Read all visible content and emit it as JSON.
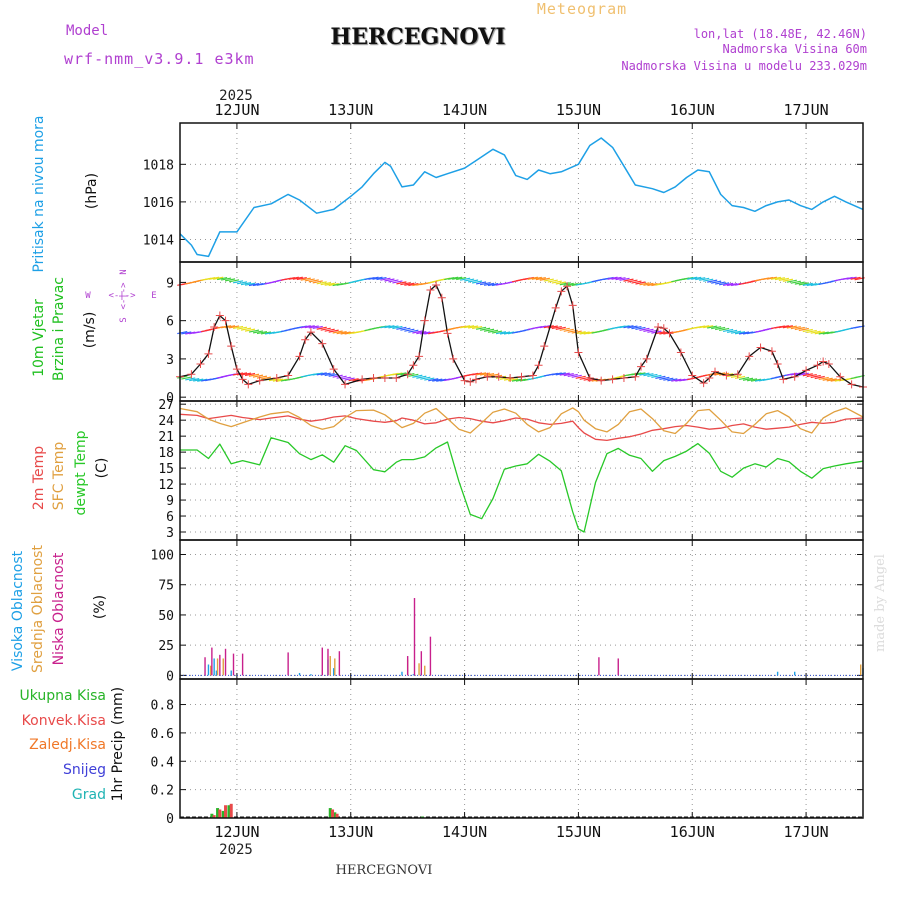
{
  "header": {
    "title": "HERCEGNOVI",
    "product": "Meteogram",
    "model_label": "Model",
    "model_name": "wrf-nmm_v3.9.1 e3km",
    "location": "lon,lat (18.48E, 42.46N)",
    "altitude": "Nadmorska Visina 60m",
    "model_altitude": "Nadmorska Visina u modelu 233.029m",
    "footer_title": "HERCEGNOVI",
    "watermark": "made by Angel"
  },
  "colors": {
    "pressure": "#1ea0e6",
    "wind_label": "#20c020",
    "t2m": "#e84a4a",
    "sfc": "#e0a040",
    "dew": "#28c828",
    "cloud_high": "#1ea0e6",
    "cloud_mid": "#e0a040",
    "cloud_low": "#c8208c",
    "total": "#28b428",
    "conv": "#e84a4a",
    "frz": "#f07828",
    "snow": "#4040d8",
    "hail": "#20b4b4",
    "model": "#b040d0",
    "product": "#f0c070"
  },
  "chart_data": {
    "type": "meteogram",
    "year": "2025",
    "x_ticks": [
      "12JUN",
      "13JUN",
      "14JUN",
      "15JUN",
      "16JUN",
      "17JUN"
    ],
    "x_range_days": [
      11.5,
      17.5
    ],
    "panels": [
      {
        "id": "pressure",
        "type": "line",
        "title": "Pritisak na nivou mora",
        "unit": "(hPa)",
        "ylim": [
          1012.8,
          1020.2
        ],
        "yticks": [
          1014,
          1016,
          1018
        ],
        "x": [
          11.5,
          11.6,
          11.65,
          11.75,
          11.85,
          12.0,
          12.15,
          12.3,
          12.45,
          12.55,
          12.7,
          12.85,
          13.0,
          13.1,
          13.2,
          13.3,
          13.35,
          13.45,
          13.55,
          13.65,
          13.75,
          13.85,
          14.0,
          14.1,
          14.25,
          14.35,
          14.45,
          14.55,
          14.65,
          14.75,
          14.85,
          15.0,
          15.1,
          15.2,
          15.3,
          15.4,
          15.5,
          15.65,
          15.75,
          15.85,
          15.95,
          16.05,
          16.15,
          16.25,
          16.35,
          16.45,
          16.55,
          16.65,
          16.75,
          16.85,
          16.95,
          17.05,
          17.15,
          17.25,
          17.35,
          17.5
        ],
        "values": [
          1014.3,
          1013.7,
          1013.2,
          1013.1,
          1014.4,
          1014.4,
          1015.7,
          1015.9,
          1016.4,
          1016.1,
          1015.4,
          1015.6,
          1016.3,
          1016.8,
          1017.5,
          1018.1,
          1017.9,
          1016.8,
          1016.9,
          1017.6,
          1017.3,
          1017.5,
          1017.8,
          1018.2,
          1018.8,
          1018.5,
          1017.4,
          1017.2,
          1017.7,
          1017.5,
          1017.6,
          1018.0,
          1019.0,
          1019.4,
          1018.9,
          1017.9,
          1016.9,
          1016.7,
          1016.5,
          1016.8,
          1017.3,
          1017.7,
          1017.6,
          1016.4,
          1015.8,
          1015.7,
          1015.5,
          1015.8,
          1016.0,
          1016.1,
          1015.8,
          1015.6,
          1016.0,
          1016.3,
          1016.0,
          1015.6
        ]
      },
      {
        "id": "wind",
        "type": "line",
        "title": "10m Vjetar Brzina i Pravac",
        "title_line1": "10m Vjetar",
        "title_line2": "Brzina i Pravac",
        "unit": "(m/s)",
        "ylim": [
          -0.3,
          10.6
        ],
        "yticks": [
          0,
          3,
          6,
          9
        ],
        "compass": {
          "n": "N",
          "e": "E",
          "s": "S",
          "w": "W",
          "arrow_h": "<-|->",
          "arrow_v": "<-|->"
        },
        "x": [
          11.5,
          11.6,
          11.68,
          11.75,
          11.8,
          11.85,
          11.9,
          11.95,
          12.0,
          12.05,
          12.1,
          12.2,
          12.35,
          12.45,
          12.55,
          12.6,
          12.65,
          12.75,
          12.85,
          12.95,
          13.1,
          13.2,
          13.3,
          13.4,
          13.5,
          13.55,
          13.6,
          13.65,
          13.7,
          13.75,
          13.8,
          13.85,
          13.9,
          14.0,
          14.05,
          14.1,
          14.2,
          14.3,
          14.4,
          14.5,
          14.6,
          14.65,
          14.7,
          14.8,
          14.85,
          14.9,
          14.95,
          15.0,
          15.1,
          15.2,
          15.3,
          15.4,
          15.5,
          15.55,
          15.6,
          15.7,
          15.75,
          15.8,
          15.9,
          16.0,
          16.1,
          16.15,
          16.2,
          16.3,
          16.4,
          16.5,
          16.6,
          16.7,
          16.75,
          16.8,
          16.9,
          17.0,
          17.1,
          17.15,
          17.2,
          17.3,
          17.4,
          17.5
        ],
        "values": [
          1.6,
          1.8,
          2.6,
          3.4,
          5.5,
          6.4,
          6.0,
          4.0,
          2.2,
          1.4,
          1.0,
          1.3,
          1.5,
          1.7,
          3.2,
          4.5,
          5.1,
          4.2,
          2.2,
          1.0,
          1.4,
          1.5,
          1.5,
          1.5,
          1.8,
          2.5,
          3.2,
          6.0,
          8.4,
          8.8,
          7.8,
          5.0,
          3.0,
          1.3,
          1.2,
          1.4,
          1.6,
          1.6,
          1.5,
          1.6,
          1.7,
          2.5,
          4.0,
          7.0,
          8.3,
          8.7,
          7.2,
          3.5,
          1.5,
          1.3,
          1.4,
          1.5,
          1.6,
          2.4,
          3.0,
          5.5,
          5.4,
          5.0,
          3.5,
          1.7,
          1.1,
          1.5,
          2.0,
          1.7,
          1.8,
          3.2,
          3.9,
          3.6,
          2.6,
          1.4,
          1.6,
          2.1,
          2.5,
          2.8,
          2.6,
          1.6,
          1.0,
          0.8
        ]
      },
      {
        "id": "temperature",
        "type": "line",
        "titles": [
          "2m Temp",
          "SFC Temp",
          "dewpt Temp"
        ],
        "unit": "(C)",
        "ylim": [
          1.5,
          27.6
        ],
        "yticks": [
          3,
          6,
          9,
          12,
          15,
          18,
          21,
          24,
          27
        ],
        "x": [
          11.5,
          11.65,
          11.75,
          11.85,
          11.95,
          12.05,
          12.2,
          12.3,
          12.45,
          12.55,
          12.65,
          12.75,
          12.85,
          12.95,
          13.05,
          13.2,
          13.3,
          13.4,
          13.45,
          13.55,
          13.65,
          13.75,
          13.85,
          13.95,
          14.05,
          14.15,
          14.25,
          14.35,
          14.45,
          14.55,
          14.65,
          14.75,
          14.85,
          14.95,
          15.0,
          15.05,
          15.15,
          15.25,
          15.35,
          15.45,
          15.55,
          15.65,
          15.75,
          15.85,
          15.95,
          16.05,
          16.15,
          16.25,
          16.35,
          16.45,
          16.55,
          16.65,
          16.75,
          16.85,
          16.95,
          17.05,
          17.15,
          17.25,
          17.35,
          17.5
        ],
        "series": [
          {
            "name": "2m Temp",
            "values": [
              25.1,
              24.9,
              24.3,
              24.6,
              24.9,
              24.5,
              24.1,
              24.4,
              24.8,
              24.2,
              23.8,
              24.1,
              24.6,
              24.8,
              24.3,
              23.8,
              23.6,
              23.9,
              24.4,
              24.0,
              23.3,
              23.5,
              24.2,
              24.5,
              24.3,
              23.8,
              23.5,
              23.9,
              24.4,
              24.2,
              23.5,
              23.2,
              23.4,
              23.8,
              22.6,
              21.6,
              20.4,
              20.2,
              20.6,
              20.9,
              21.4,
              22.1,
              22.4,
              22.8,
              23.0,
              22.7,
              22.3,
              22.5,
              23.0,
              23.3,
              22.7,
              22.3,
              22.5,
              22.7,
              23.2,
              23.6,
              23.4,
              23.6,
              24.2,
              24.4
            ]
          },
          {
            "name": "SFC Temp",
            "values": [
              26.2,
              25.6,
              24.2,
              23.4,
              22.8,
              23.5,
              24.6,
              25.2,
              25.6,
              24.5,
              23.0,
              22.3,
              22.8,
              24.5,
              25.8,
              25.9,
              25.0,
              23.4,
              22.6,
              23.4,
              25.3,
              26.2,
              24.3,
              22.3,
              21.6,
              23.5,
              25.5,
              26.1,
              25.3,
              23.2,
              21.8,
              22.6,
              25.2,
              26.3,
              25.6,
              24.0,
              22.4,
              21.8,
              23.2,
              25.6,
              26.1,
              24.3,
              22.0,
              21.5,
              23.4,
              25.8,
              26.0,
              24.0,
              21.8,
              21.5,
              23.2,
              25.2,
              25.8,
              24.6,
              22.4,
              21.6,
              24.4,
              25.6,
              26.3,
              24.6
            ]
          },
          {
            "name": "dewpt Temp",
            "values": [
              18.4,
              18.4,
              16.8,
              19.5,
              15.8,
              16.4,
              15.6,
              20.7,
              19.8,
              17.7,
              16.6,
              17.5,
              16.1,
              19.2,
              18.3,
              14.7,
              14.3,
              16.1,
              16.6,
              16.6,
              17.1,
              18.8,
              19.9,
              12.5,
              6.3,
              5.5,
              9.3,
              14.8,
              15.4,
              15.8,
              17.6,
              16.3,
              14.5,
              6.8,
              3.6,
              3.0,
              12.3,
              17.7,
              18.7,
              17.4,
              16.8,
              14.4,
              16.4,
              17.2,
              18.2,
              19.6,
              17.8,
              14.4,
              13.3,
              15.0,
              15.8,
              15.2,
              16.8,
              16.2,
              14.4,
              13.1,
              14.9,
              15.4,
              15.8,
              16.3
            ]
          }
        ]
      },
      {
        "id": "cloud",
        "type": "bar",
        "titles": [
          "Visoka Oblacnost",
          "Srednja Oblacnost",
          "Niska Oblacnost"
        ],
        "unit": "(%)",
        "ylim": [
          -3,
          112
        ],
        "yticks": [
          0,
          25,
          50,
          75,
          100
        ],
        "series": [
          {
            "name": "Visoka Oblacnost",
            "x": [
              11.75,
              11.8,
              11.82,
              11.95,
              12.55,
              12.65,
              12.8,
              12.85,
              13.45,
              13.55,
              13.62,
              16.75,
              16.9,
              17.5
            ],
            "values": [
              9,
              14,
              4,
              4,
              2,
              1,
              13,
              6,
              3,
              1,
              2,
              3,
              3,
              6
            ]
          },
          {
            "name": "Srednja Oblacnost",
            "x": [
              11.77,
              11.83,
              11.88,
              12.82,
              12.86,
              13.5,
              13.6,
              13.65,
              17.48
            ],
            "values": [
              8,
              14,
              14,
              16,
              14,
              13,
              10,
              8,
              9
            ]
          },
          {
            "name": "Niska Oblacnost",
            "x": [
              11.72,
              11.78,
              11.85,
              11.9,
              11.97,
              12.05,
              12.45,
              12.75,
              12.8,
              12.9,
              13.5,
              13.56,
              13.62,
              13.7,
              15.18,
              15.35
            ],
            "values": [
              15,
              23,
              17,
              22,
              18,
              18,
              19,
              23,
              22,
              20,
              16,
              64,
              20,
              32,
              15,
              14
            ]
          }
        ]
      },
      {
        "id": "precip",
        "type": "bar",
        "title": "1hr Precip",
        "unit": "(mm)",
        "legend": [
          "Ukupna Kisa",
          "Konvek.Kisa",
          "Zaledj.Kisa",
          "Snijeg",
          "Grad"
        ],
        "ylim": [
          0,
          0.98
        ],
        "yticks": [
          0,
          0.2,
          0.4,
          0.6,
          0.8
        ],
        "series": [
          {
            "name": "Ukupna Kisa",
            "x": [
              11.78,
              11.83,
              11.88,
              11.93,
              12.82,
              12.86,
              13.63
            ],
            "values": [
              0.03,
              0.07,
              0.05,
              0.09,
              0.07,
              0.04,
              0.01
            ]
          },
          {
            "name": "Konvek.Kisa",
            "x": [
              11.8,
              11.85,
              11.9,
              11.95,
              12.84,
              12.88
            ],
            "values": [
              0.02,
              0.06,
              0.09,
              0.1,
              0.06,
              0.03
            ]
          },
          {
            "name": "Zaledj.Kisa",
            "x": [],
            "values": []
          },
          {
            "name": "Snijeg",
            "x": [],
            "values": []
          },
          {
            "name": "Grad",
            "x": [],
            "values": []
          }
        ]
      }
    ]
  }
}
